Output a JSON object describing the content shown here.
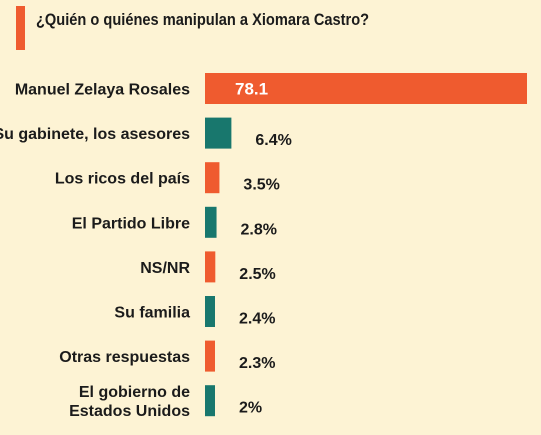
{
  "chart_data": {
    "type": "bar",
    "orientation": "horizontal",
    "title": "¿Quién o quiénes manipulan a Xiomara Castro?",
    "categories": [
      [
        "Manuel Zelaya Rosales"
      ],
      [
        "Su gabinete, los asesores"
      ],
      [
        "Los ricos del país"
      ],
      [
        "El Partido Libre"
      ],
      [
        "NS/NR"
      ],
      [
        "Su familia"
      ],
      [
        "Otras respuestas"
      ],
      [
        "El gobierno de",
        "Estados Unidos"
      ]
    ],
    "values": [
      78.1,
      6.4,
      3.5,
      2.8,
      2.5,
      2.4,
      2.3,
      2
    ],
    "value_labels": [
      "78.1",
      "6.4%",
      "3.5%",
      "2.8%",
      "2.5%",
      "2.4%",
      "2.3%",
      "2%"
    ],
    "bar_colors": [
      "#ef5b2f",
      "#18776d",
      "#ef5b2f",
      "#18776d",
      "#ef5b2f",
      "#18776d",
      "#ef5b2f",
      "#18776d"
    ],
    "xlim": [
      0,
      78.1
    ],
    "grid": false,
    "legend": "none"
  },
  "colors": {
    "background": "#fdf3d4",
    "accent": "#ef5b2f",
    "secondary": "#18776d"
  }
}
